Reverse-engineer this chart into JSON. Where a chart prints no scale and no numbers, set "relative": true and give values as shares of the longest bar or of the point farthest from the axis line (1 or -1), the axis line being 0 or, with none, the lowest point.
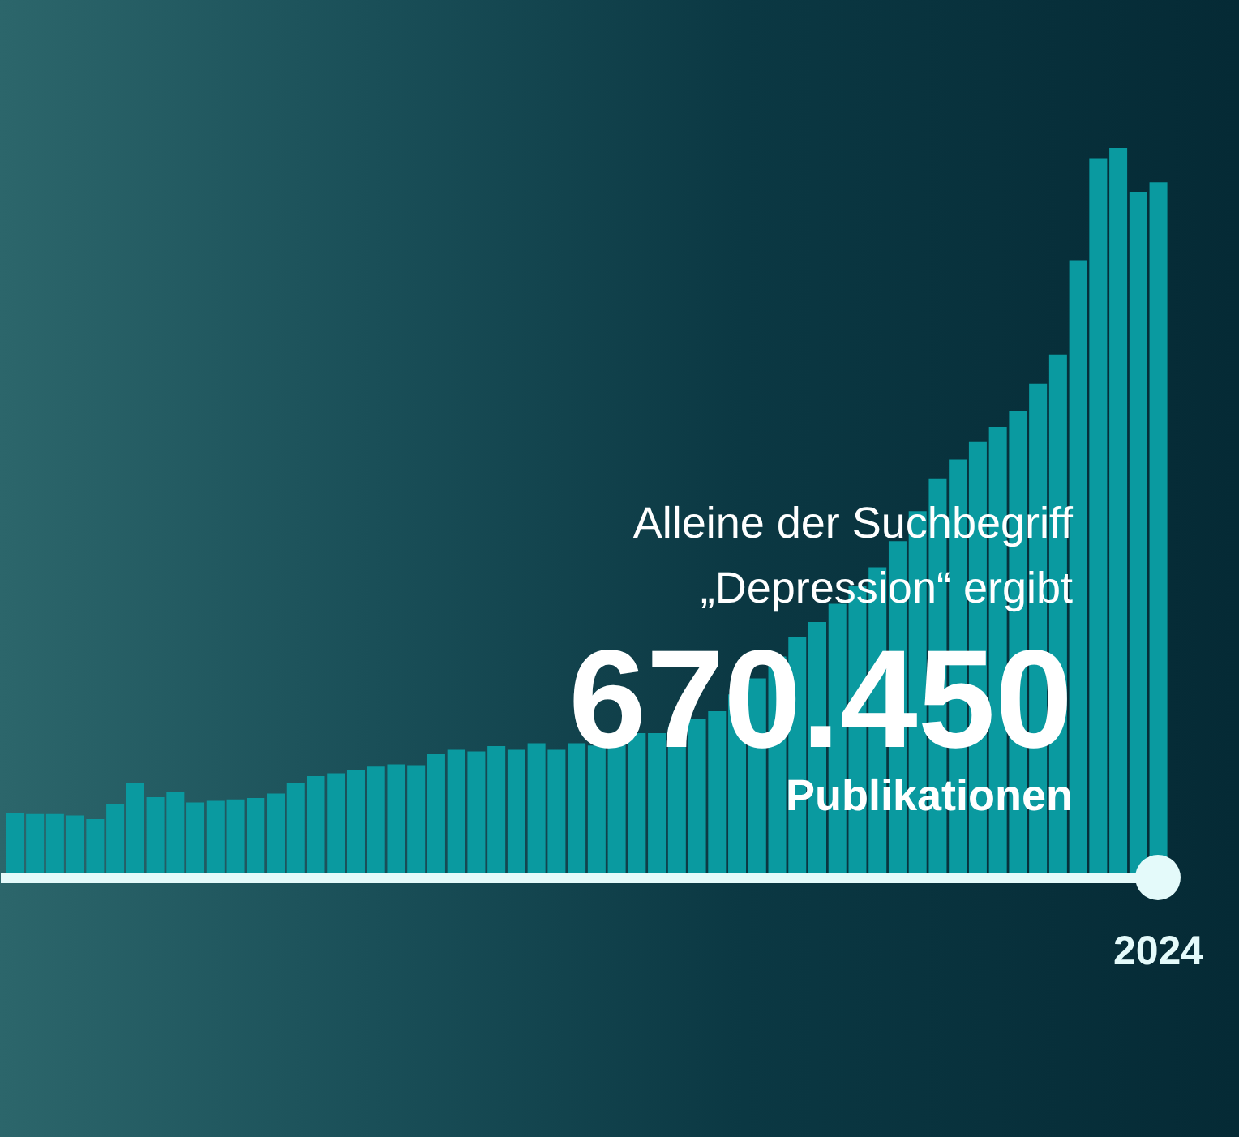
{
  "chart_data": {
    "type": "bar",
    "relative": true,
    "grid": false,
    "color": "#0a9aa0",
    "categories": [
      null,
      null,
      null,
      null,
      null,
      null,
      null,
      null,
      null,
      null,
      null,
      null,
      null,
      null,
      null,
      null,
      null,
      null,
      null,
      null,
      null,
      null,
      null,
      null,
      null,
      null,
      null,
      null,
      null,
      null,
      null,
      null,
      null,
      null,
      null,
      null,
      null,
      null,
      null,
      null,
      null,
      null,
      null,
      null,
      null,
      null,
      null,
      null,
      null,
      null,
      null,
      null,
      null,
      null,
      null,
      null,
      null,
      "2024"
    ],
    "values": [
      0.089,
      0.088,
      0.088,
      0.086,
      0.081,
      0.102,
      0.131,
      0.111,
      0.118,
      0.104,
      0.106,
      0.108,
      0.11,
      0.116,
      0.13,
      0.14,
      0.144,
      0.149,
      0.153,
      0.156,
      0.155,
      0.17,
      0.176,
      0.174,
      0.181,
      0.176,
      0.185,
      0.176,
      0.185,
      0.182,
      0.191,
      0.199,
      0.199,
      0.207,
      0.219,
      0.229,
      0.252,
      0.274,
      0.304,
      0.33,
      0.351,
      0.376,
      0.401,
      0.426,
      0.462,
      0.503,
      0.547,
      0.574,
      0.598,
      0.618,
      0.64,
      0.678,
      0.717,
      0.846,
      0.986,
      1,
      0.94,
      0.953
    ],
    "annotations": [
      "Alleine der Suchbegriff",
      "„Depression“ ergibt",
      "670.450",
      "Publikationen"
    ]
  }
}
